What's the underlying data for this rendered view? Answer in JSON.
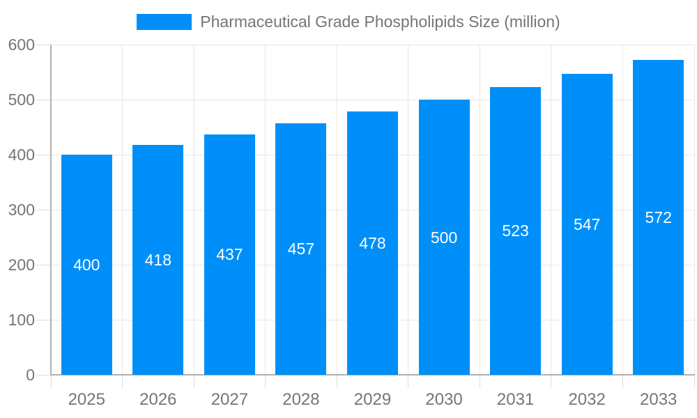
{
  "legend": {
    "label": "Pharmaceutical Grade Phospholipids Size (million)"
  },
  "chart_data": {
    "type": "bar",
    "title": "Pharmaceutical Grade Phospholipids Size (million)",
    "categories": [
      "2025",
      "2026",
      "2027",
      "2028",
      "2029",
      "2030",
      "2031",
      "2032",
      "2033"
    ],
    "values": [
      400,
      418,
      437,
      457,
      478,
      500,
      523,
      547,
      572
    ],
    "xlabel": "",
    "ylabel": "",
    "ylim": [
      0,
      600
    ],
    "ytick_step": 100,
    "ytick_labels": [
      "0",
      "100",
      "200",
      "300",
      "400",
      "500",
      "600"
    ],
    "grid": true,
    "legend_position": "top-center",
    "bar_value_labels": "inside-middle",
    "colors": {
      "bar": "#008FF8",
      "bar_label": "#FFFFFF",
      "grid": "#E7E7E7",
      "tick": "#DCDCDC",
      "axis": "#B1B1B1",
      "text": "#757575",
      "background": "#FFFFFF"
    }
  }
}
